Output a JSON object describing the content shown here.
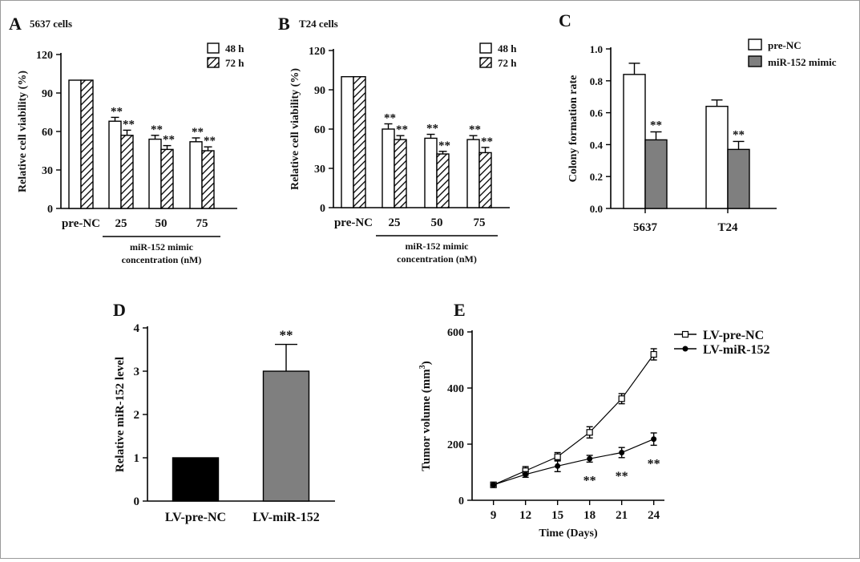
{
  "colors": {
    "bar_open": "#ffffff",
    "bar_gray": "#7f7f7f",
    "bar_black": "#000000",
    "line": "#000000",
    "annotation": "#444444"
  },
  "chart_data": [
    {
      "panel": "A",
      "type": "bar",
      "subtitle": "5637 cells",
      "ylabel": "Relative cell viability (%)",
      "ylim": [
        0,
        120
      ],
      "yticks": [
        0,
        30,
        60,
        90,
        120
      ],
      "categories": [
        "pre-NC",
        "25",
        "50",
        "75"
      ],
      "group_label": [
        "miR-152 mimic",
        "concentration (nM)"
      ],
      "series": [
        {
          "name": "48 h",
          "pattern": "open",
          "values": [
            100,
            68,
            54,
            52
          ],
          "errors": [
            0,
            3,
            3,
            3
          ],
          "sig": [
            "",
            "**",
            "**",
            "**"
          ]
        },
        {
          "name": "72 h",
          "pattern": "hatched",
          "values": [
            100,
            57,
            46,
            45
          ],
          "errors": [
            0,
            4,
            3,
            3
          ],
          "sig": [
            "",
            "**",
            "**",
            "**"
          ]
        }
      ],
      "legend_position": "top-right"
    },
    {
      "panel": "B",
      "type": "bar",
      "subtitle": "T24 cells",
      "ylabel": "Relative cell viability (%)",
      "ylim": [
        0,
        120
      ],
      "yticks": [
        0,
        30,
        60,
        90,
        120
      ],
      "categories": [
        "pre-NC",
        "25",
        "50",
        "75"
      ],
      "group_label": [
        "miR-152 mimic",
        "concentration (nM)"
      ],
      "series": [
        {
          "name": "48 h",
          "pattern": "open",
          "values": [
            100,
            60,
            53,
            52
          ],
          "errors": [
            0,
            4,
            3,
            3
          ],
          "sig": [
            "",
            "**",
            "**",
            "**"
          ]
        },
        {
          "name": "72 h",
          "pattern": "hatched",
          "values": [
            100,
            52,
            41,
            42
          ],
          "errors": [
            0,
            3,
            2,
            4
          ],
          "sig": [
            "",
            "**",
            "**",
            "**"
          ]
        }
      ],
      "legend_position": "top-right"
    },
    {
      "panel": "C",
      "type": "bar",
      "ylabel": "Colony formation rate",
      "ylim": [
        0,
        1.0
      ],
      "yticks": [
        "0.0",
        "0.2",
        "0.4",
        "0.6",
        "0.8",
        "1.0"
      ],
      "categories": [
        "5637",
        "T24"
      ],
      "series": [
        {
          "name": "pre-NC",
          "pattern": "open",
          "values": [
            0.84,
            0.64
          ],
          "errors": [
            0.07,
            0.04
          ],
          "sig": [
            "",
            ""
          ]
        },
        {
          "name": "miR-152 mimic",
          "pattern": "gray",
          "values": [
            0.43,
            0.37
          ],
          "errors": [
            0.05,
            0.05
          ],
          "sig": [
            "**",
            "**"
          ]
        }
      ],
      "legend_position": "top-right"
    },
    {
      "panel": "D",
      "type": "bar",
      "ylabel": "Relative miR-152 level",
      "ylim": [
        0,
        4
      ],
      "yticks": [
        0,
        1,
        2,
        3,
        4
      ],
      "categories": [
        "LV-pre-NC",
        "LV-miR-152"
      ],
      "values": [
        1.0,
        3.0
      ],
      "errors": [
        0,
        0.62
      ],
      "fills": [
        "black",
        "gray"
      ],
      "sig": [
        "",
        "**"
      ]
    },
    {
      "panel": "E",
      "type": "line",
      "xlabel": "Time (Days)",
      "ylabel_main": "Tumor volume (mm",
      "ylabel_sup": "3",
      "ylabel_close": ")",
      "ylim": [
        0,
        600
      ],
      "yticks": [
        0,
        200,
        400,
        600
      ],
      "x": [
        9,
        12,
        15,
        18,
        21,
        24
      ],
      "xlim": [
        7,
        25
      ],
      "series": [
        {
          "name": "LV-pre-NC",
          "marker": "open-square",
          "values": [
            55,
            105,
            155,
            242,
            362,
            520
          ],
          "errors": [
            0,
            15,
            15,
            20,
            18,
            20
          ],
          "sig": [
            "",
            "",
            "",
            "",
            "",
            ""
          ]
        },
        {
          "name": "LV-miR-152",
          "marker": "filled-circle",
          "values": [
            55,
            92,
            122,
            148,
            170,
            218
          ],
          "errors": [
            0,
            10,
            20,
            12,
            18,
            22
          ],
          "sig": [
            "",
            "",
            "",
            "**",
            "**",
            "**"
          ]
        }
      ],
      "legend_position": "top-right"
    }
  ]
}
